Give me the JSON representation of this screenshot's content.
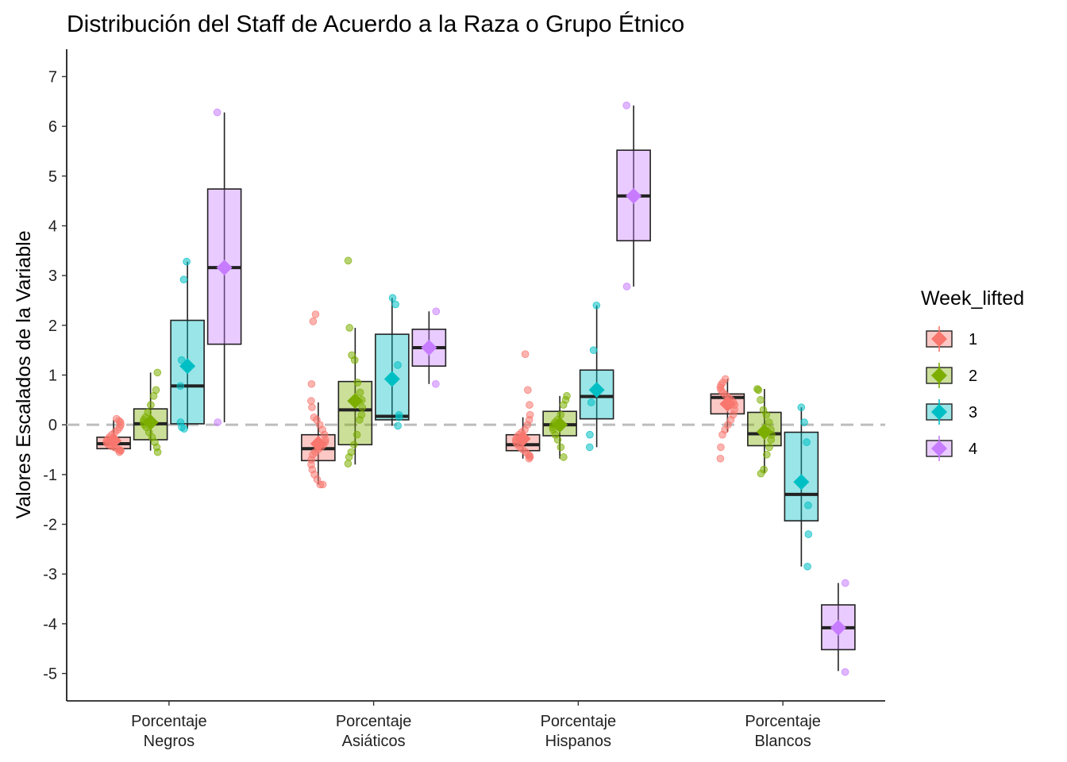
{
  "chart_data": {
    "type": "box",
    "title": "Distribución del Staff de Acuerdo a la Raza o Grupo Étnico",
    "xlabel": "",
    "ylabel": "Valores Escalados de la Variable",
    "ylim": [
      -5.55,
      7.55
    ],
    "yticks": [
      -5,
      -4,
      -3,
      -2,
      -1,
      0,
      1,
      2,
      3,
      4,
      5,
      6,
      7
    ],
    "reference_line_y": 0,
    "grid": false,
    "legend": {
      "title": "Week_lifted",
      "position": "right",
      "entries": [
        "1",
        "2",
        "3",
        "4"
      ]
    },
    "colors": {
      "1": "#F8766D",
      "2": "#7CAE00",
      "3": "#00BFC4",
      "4": "#C77CFF"
    },
    "categories": [
      {
        "label_line1": "Porcentaje",
        "label_line2": "Negros"
      },
      {
        "label_line1": "Porcentaje",
        "label_line2": "Asiáticos"
      },
      {
        "label_line1": "Porcentaje",
        "label_line2": "Hispanos"
      },
      {
        "label_line1": "Porcentaje",
        "label_line2": "Blancos"
      }
    ],
    "series": [
      {
        "name": "1",
        "boxes": [
          {
            "q1": -0.48,
            "median": -0.38,
            "q3": -0.25,
            "whisker_low": -0.52,
            "whisker_high": 0.1,
            "mean": -0.32,
            "points": [
              0.12,
              0.08,
              0.05,
              0.0,
              -0.05,
              -0.1,
              -0.15,
              -0.2,
              -0.25,
              -0.3,
              -0.33,
              -0.37,
              -0.4,
              -0.43,
              -0.45,
              -0.48,
              -0.5,
              -0.52,
              -0.52,
              -0.55
            ]
          },
          {
            "q1": -0.72,
            "median": -0.48,
            "q3": -0.2,
            "whisker_low": -1.2,
            "whisker_high": 0.45,
            "mean": -0.38,
            "points": [
              2.22,
              2.08,
              0.82,
              0.48,
              0.35,
              0.15,
              0.1,
              0.0,
              -0.1,
              -0.2,
              -0.3,
              -0.35,
              -0.4,
              -0.45,
              -0.5,
              -0.55,
              -0.6,
              -0.7,
              -0.8,
              -0.9,
              -1.0,
              -1.1,
              -1.2,
              -1.2
            ]
          },
          {
            "q1": -0.52,
            "median": -0.4,
            "q3": -0.2,
            "whisker_low": -0.68,
            "whisker_high": 0.15,
            "mean": -0.28,
            "points": [
              1.42,
              0.7,
              0.4,
              0.2,
              0.1,
              0.0,
              -0.1,
              -0.15,
              -0.2,
              -0.25,
              -0.3,
              -0.35,
              -0.4,
              -0.45,
              -0.5,
              -0.55,
              -0.6,
              -0.62,
              -0.65,
              -0.68
            ]
          },
          {
            "q1": 0.22,
            "median": 0.55,
            "q3": 0.62,
            "whisker_low": -0.15,
            "whisker_high": 0.92,
            "mean": 0.42,
            "points": [
              0.92,
              0.85,
              0.8,
              0.75,
              0.7,
              0.65,
              0.6,
              0.55,
              0.5,
              0.45,
              0.4,
              0.3,
              0.2,
              0.1,
              0.0,
              -0.1,
              -0.2,
              -0.45,
              -0.68
            ]
          }
        ]
      },
      {
        "name": "2",
        "boxes": [
          {
            "q1": -0.3,
            "median": 0.02,
            "q3": 0.32,
            "whisker_low": -0.52,
            "whisker_high": 1.05,
            "mean": 0.05,
            "points": [
              1.05,
              0.7,
              0.58,
              0.4,
              0.25,
              0.15,
              0.1,
              0.05,
              0.0,
              -0.05,
              -0.15,
              -0.25,
              -0.35,
              -0.45,
              -0.55
            ]
          },
          {
            "q1": -0.4,
            "median": 0.3,
            "q3": 0.87,
            "whisker_low": -0.8,
            "whisker_high": 1.95,
            "mean": 0.48,
            "points": [
              3.3,
              1.95,
              1.4,
              1.3,
              0.85,
              0.65,
              0.5,
              0.35,
              0.2,
              0.1,
              -0.2,
              -0.4,
              -0.55,
              -0.65,
              -0.78
            ]
          },
          {
            "q1": -0.22,
            "median": 0.0,
            "q3": 0.27,
            "whisker_low": -0.68,
            "whisker_high": 0.58,
            "mean": 0.0,
            "points": [
              0.58,
              0.5,
              0.4,
              0.2,
              0.1,
              0.05,
              0.0,
              -0.05,
              -0.1,
              -0.2,
              -0.3,
              -0.45,
              -0.65
            ]
          },
          {
            "q1": -0.42,
            "median": -0.18,
            "q3": 0.25,
            "whisker_low": -0.98,
            "whisker_high": 0.72,
            "mean": -0.14,
            "points": [
              0.72,
              0.7,
              0.5,
              0.3,
              0.2,
              0.05,
              -0.1,
              -0.2,
              -0.3,
              -0.45,
              -0.6,
              -0.9,
              -0.98
            ]
          }
        ]
      },
      {
        "name": "3",
        "boxes": [
          {
            "q1": 0.02,
            "median": 0.78,
            "q3": 2.1,
            "whisker_low": -0.08,
            "whisker_high": 3.28,
            "mean": 1.18,
            "points": [
              3.28,
              2.92,
              1.3,
              0.78,
              0.05,
              -0.05,
              -0.08
            ]
          },
          {
            "q1": 0.1,
            "median": 0.17,
            "q3": 1.82,
            "whisker_low": -0.02,
            "whisker_high": 2.55,
            "mean": 0.92,
            "points": [
              2.55,
              2.42,
              1.2,
              0.2,
              0.15,
              -0.02
            ]
          },
          {
            "q1": 0.12,
            "median": 0.57,
            "q3": 1.1,
            "whisker_low": -0.45,
            "whisker_high": 2.4,
            "mean": 0.7,
            "points": [
              2.4,
              1.5,
              0.45,
              -0.2,
              -0.45
            ]
          },
          {
            "q1": -1.93,
            "median": -1.4,
            "q3": -0.15,
            "whisker_low": -2.85,
            "whisker_high": 0.35,
            "mean": -1.15,
            "points": [
              0.35,
              0.05,
              -0.35,
              -1.62,
              -2.2,
              -2.85
            ]
          }
        ]
      },
      {
        "name": "4",
        "boxes": [
          {
            "q1": 1.62,
            "median": 3.16,
            "q3": 4.74,
            "whisker_low": 0.05,
            "whisker_high": 6.28,
            "mean": 3.16,
            "points": [
              6.28,
              0.05
            ]
          },
          {
            "q1": 1.18,
            "median": 1.55,
            "q3": 1.92,
            "whisker_low": 0.82,
            "whisker_high": 2.28,
            "mean": 1.55,
            "points": [
              2.28,
              0.82
            ]
          },
          {
            "q1": 3.7,
            "median": 4.6,
            "q3": 5.52,
            "whisker_low": 2.78,
            "whisker_high": 6.42,
            "mean": 4.6,
            "points": [
              6.42,
              2.78
            ]
          },
          {
            "q1": -4.52,
            "median": -4.08,
            "q3": -3.62,
            "whisker_low": -4.95,
            "whisker_high": -3.18,
            "mean": -4.08,
            "points": [
              -3.18,
              -4.97
            ]
          }
        ]
      }
    ]
  }
}
